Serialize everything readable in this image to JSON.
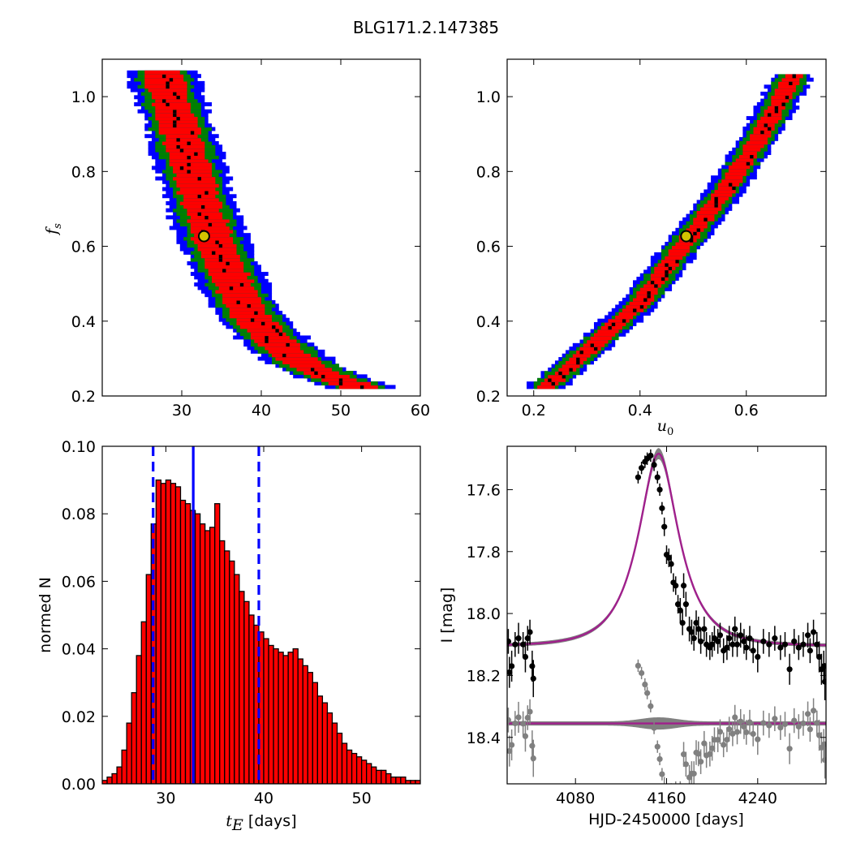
{
  "figure": {
    "title": "BLG171.2.147385"
  },
  "chart_data": [
    {
      "panel": "top-left",
      "type": "heatmap",
      "xlabel": "",
      "ylabel": "f_s",
      "xlim": [
        20,
        60
      ],
      "ylim": [
        0.2,
        1.1
      ],
      "xticks": [
        30,
        40,
        50,
        60
      ],
      "yticks": [
        0.2,
        0.4,
        0.6,
        0.8,
        1.0
      ],
      "xtick_labels": [
        "30",
        "40",
        "50",
        "60"
      ],
      "ytick_labels": [
        "0.2",
        "0.4",
        "0.6",
        "0.8",
        "1.0"
      ],
      "colors": {
        "outer": "#0000ff",
        "middle": "#008000",
        "inner": "#ff0000",
        "samples": "#000000",
        "best": "#d4c400"
      },
      "ridge": [
        [
          27.6,
          1.07
        ],
        [
          28.5,
          1.0
        ],
        [
          30.0,
          0.9
        ],
        [
          31.3,
          0.8
        ],
        [
          32.7,
          0.7
        ],
        [
          34.0,
          0.62
        ],
        [
          36.0,
          0.52
        ],
        [
          38.5,
          0.42
        ],
        [
          41.5,
          0.35
        ],
        [
          45.0,
          0.29
        ],
        [
          49.0,
          0.25
        ],
        [
          53.0,
          0.22
        ]
      ],
      "band_halfwidth": {
        "inner": 2.4,
        "middle": 3.4,
        "outer": 4.4
      },
      "best_fit": [
        32.8,
        0.627
      ]
    },
    {
      "panel": "top-right",
      "type": "heatmap",
      "xlabel": "u_0",
      "ylabel": "",
      "xlim": [
        0.15,
        0.75
      ],
      "ylim": [
        0.2,
        1.1
      ],
      "xticks": [
        0.2,
        0.4,
        0.6
      ],
      "yticks": [
        0.2,
        0.4,
        0.6,
        0.8,
        1.0
      ],
      "xtick_labels": [
        "0.2",
        "0.4",
        "0.6"
      ],
      "ytick_labels": [
        "0.2",
        "0.4",
        "0.6",
        "0.8",
        "1.0"
      ],
      "ridge": [
        [
          0.22,
          0.22
        ],
        [
          0.3,
          0.32
        ],
        [
          0.4,
          0.45
        ],
        [
          0.49,
          0.62
        ],
        [
          0.56,
          0.75
        ],
        [
          0.62,
          0.88
        ],
        [
          0.69,
          1.06
        ]
      ],
      "band_halfwidth": {
        "inner": 0.018,
        "middle": 0.028,
        "outer": 0.038
      },
      "best_fit": [
        0.487,
        0.627
      ]
    },
    {
      "panel": "bottom-left",
      "type": "bar",
      "xlabel": "t_E [days]",
      "xlabel_unit": "[days]",
      "ylabel": "normed N",
      "xlim": [
        23.5,
        56
      ],
      "ylim": [
        0,
        0.1
      ],
      "xticks": [
        30,
        40,
        50
      ],
      "yticks": [
        0,
        0.02,
        0.04,
        0.06,
        0.08,
        0.1
      ],
      "xtick_labels": [
        "30",
        "40",
        "50"
      ],
      "ytick_labels": [
        "0.00",
        "0.02",
        "0.04",
        "0.06",
        "0.08",
        "0.10"
      ],
      "bin_start": 23.5,
      "bin_width": 0.5,
      "values": [
        0.001,
        0.002,
        0.003,
        0.005,
        0.01,
        0.018,
        0.027,
        0.038,
        0.048,
        0.062,
        0.077,
        0.09,
        0.089,
        0.09,
        0.089,
        0.088,
        0.084,
        0.083,
        0.081,
        0.08,
        0.077,
        0.075,
        0.076,
        0.083,
        0.072,
        0.069,
        0.066,
        0.062,
        0.057,
        0.054,
        0.05,
        0.047,
        0.045,
        0.043,
        0.041,
        0.04,
        0.039,
        0.038,
        0.039,
        0.04,
        0.037,
        0.035,
        0.033,
        0.03,
        0.026,
        0.024,
        0.021,
        0.018,
        0.015,
        0.012,
        0.01,
        0.009,
        0.008,
        0.007,
        0.006,
        0.005,
        0.004,
        0.004,
        0.003,
        0.002,
        0.002,
        0.002,
        0.001,
        0.001,
        0.001
      ],
      "median": 32.8,
      "lower": 28.7,
      "upper": 39.5,
      "bar_color": "#ff0000",
      "line_color": "#0000ff"
    },
    {
      "panel": "bottom-right",
      "type": "scatter",
      "xlabel": "HJD-2450000 [days]",
      "ylabel": "I [mag]",
      "xlim": [
        4020,
        4300
      ],
      "ylim": [
        18.55,
        17.46
      ],
      "xticks": [
        4080,
        4160,
        4240
      ],
      "yticks": [
        17.6,
        17.8,
        18.0,
        18.2,
        18.4
      ],
      "xtick_labels": [
        "4080",
        "4160",
        "4240"
      ],
      "ytick_labels": [
        "17.6",
        "17.8",
        "18.0",
        "18.2",
        "18.4"
      ],
      "model": {
        "t0": 4153,
        "tE": 32.8,
        "u0": 0.487,
        "fs": 0.627,
        "base": 18.105
      },
      "residual_offset": 18.355,
      "data_color": "#000000",
      "residual_color": "#808080",
      "model_color": "#a0208c",
      "points": [
        [
          4021,
          18.09,
          0.04
        ],
        [
          4022,
          18.19,
          0.05
        ],
        [
          4024,
          18.17,
          0.05
        ],
        [
          4027,
          18.1,
          0.04
        ],
        [
          4030,
          18.08,
          0.05
        ],
        [
          4034,
          18.1,
          0.04
        ],
        [
          4036,
          18.14,
          0.05
        ],
        [
          4038,
          18.08,
          0.04
        ],
        [
          4040,
          18.06,
          0.04
        ],
        [
          4042,
          18.17,
          0.05
        ],
        [
          4043,
          18.21,
          0.06
        ],
        [
          4135,
          17.56,
          0.02
        ],
        [
          4138,
          17.53,
          0.02
        ],
        [
          4141,
          17.51,
          0.02
        ],
        [
          4143,
          17.5,
          0.02
        ],
        [
          4146,
          17.49,
          0.02
        ],
        [
          4149,
          17.52,
          0.02
        ],
        [
          4152,
          17.56,
          0.02
        ],
        [
          4154,
          17.6,
          0.02
        ],
        [
          4156,
          17.66,
          0.02
        ],
        [
          4158,
          17.72,
          0.03
        ],
        [
          4160,
          17.81,
          0.03
        ],
        [
          4162,
          17.82,
          0.03
        ],
        [
          4164,
          17.84,
          0.03
        ],
        [
          4166,
          17.9,
          0.03
        ],
        [
          4168,
          17.91,
          0.03
        ],
        [
          4170,
          17.97,
          0.03
        ],
        [
          4172,
          17.99,
          0.04
        ],
        [
          4174,
          18.03,
          0.04
        ],
        [
          4175,
          17.91,
          0.04
        ],
        [
          4177,
          17.97,
          0.04
        ],
        [
          4180,
          18.05,
          0.04
        ],
        [
          4182,
          18.06,
          0.04
        ],
        [
          4184,
          18.08,
          0.04
        ],
        [
          4186,
          18.03,
          0.04
        ],
        [
          4188,
          18.05,
          0.04
        ],
        [
          4190,
          18.09,
          0.04
        ],
        [
          4193,
          18.05,
          0.04
        ],
        [
          4195,
          18.1,
          0.04
        ],
        [
          4198,
          18.11,
          0.04
        ],
        [
          4200,
          18.1,
          0.04
        ],
        [
          4202,
          18.08,
          0.04
        ],
        [
          4205,
          18.09,
          0.04
        ],
        [
          4207,
          18.07,
          0.04
        ],
        [
          4210,
          18.12,
          0.04
        ],
        [
          4213,
          18.11,
          0.04
        ],
        [
          4215,
          18.08,
          0.04
        ],
        [
          4218,
          18.1,
          0.04
        ],
        [
          4220,
          18.05,
          0.04
        ],
        [
          4222,
          18.1,
          0.04
        ],
        [
          4225,
          18.07,
          0.04
        ],
        [
          4228,
          18.09,
          0.04
        ],
        [
          4230,
          18.11,
          0.04
        ],
        [
          4233,
          18.08,
          0.04
        ],
        [
          4236,
          18.12,
          0.04
        ],
        [
          4240,
          18.14,
          0.05
        ],
        [
          4245,
          18.09,
          0.04
        ],
        [
          4250,
          18.1,
          0.04
        ],
        [
          4255,
          18.08,
          0.04
        ],
        [
          4260,
          18.11,
          0.04
        ],
        [
          4264,
          18.1,
          0.04
        ],
        [
          4268,
          18.18,
          0.05
        ],
        [
          4272,
          18.09,
          0.04
        ],
        [
          4276,
          18.11,
          0.04
        ],
        [
          4280,
          18.1,
          0.04
        ],
        [
          4284,
          18.07,
          0.04
        ],
        [
          4286,
          18.12,
          0.04
        ],
        [
          4289,
          18.06,
          0.04
        ],
        [
          4292,
          18.1,
          0.04
        ],
        [
          4294,
          18.14,
          0.05
        ],
        [
          4296,
          18.18,
          0.05
        ],
        [
          4298,
          18.17,
          0.05
        ],
        [
          4299,
          18.22,
          0.06
        ]
      ]
    }
  ]
}
